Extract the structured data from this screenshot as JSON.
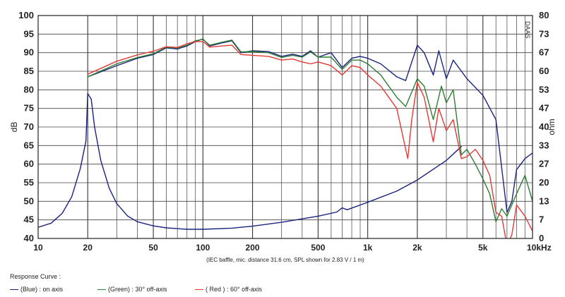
{
  "chart_data": {
    "type": "line",
    "x_scale": "log",
    "xlim": [
      10,
      10000
    ],
    "ylim_left": [
      40,
      100
    ],
    "ylim_right": [
      0,
      80
    ],
    "ylabel_left": "dB",
    "ylabel_right": "ohm",
    "xlabel": "",
    "x_tick_labels": [
      "10",
      "20",
      "50",
      "100",
      "200",
      "500",
      "1k",
      "2k",
      "5k",
      "10kHz"
    ],
    "x_tick_values": [
      10,
      20,
      50,
      100,
      200,
      500,
      1000,
      2000,
      5000,
      10000
    ],
    "y_left_ticks": [
      100,
      95,
      90,
      85,
      80,
      75,
      70,
      65,
      60,
      55,
      50,
      45,
      40
    ],
    "y_right_ticks": [
      80,
      73,
      67,
      60,
      53,
      47,
      40,
      33,
      27,
      20,
      13,
      7,
      0
    ],
    "grid": true,
    "caption": "(IEC baffle, mic. distance 31.6 cm, SPL shown for 2.83 V / 1 m)",
    "watermark": "DAAS",
    "legend_placement": "bottom",
    "series": [
      {
        "name": "(Blue)  : on axis",
        "color": "#1a237e",
        "axis": "left",
        "points": [
          [
            20,
            83.5
          ],
          [
            30,
            86.5
          ],
          [
            40,
            88.5
          ],
          [
            50,
            89.5
          ],
          [
            60,
            91.3
          ],
          [
            70,
            91.0
          ],
          [
            80,
            91.8
          ],
          [
            90,
            93.0
          ],
          [
            100,
            93.7
          ],
          [
            110,
            91.8
          ],
          [
            130,
            92.6
          ],
          [
            150,
            93.2
          ],
          [
            170,
            90.0
          ],
          [
            200,
            90.5
          ],
          [
            250,
            90.3
          ],
          [
            300,
            89.0
          ],
          [
            350,
            89.6
          ],
          [
            400,
            89.0
          ],
          [
            450,
            90.5
          ],
          [
            500,
            88.8
          ],
          [
            600,
            90.0
          ],
          [
            700,
            86.0
          ],
          [
            800,
            88.5
          ],
          [
            900,
            89.0
          ],
          [
            1000,
            88.5
          ],
          [
            1200,
            87.0
          ],
          [
            1500,
            83.5
          ],
          [
            1700,
            82.5
          ],
          [
            2000,
            92.0
          ],
          [
            2200,
            90.0
          ],
          [
            2500,
            84.0
          ],
          [
            2700,
            90.5
          ],
          [
            3000,
            83.0
          ],
          [
            3300,
            88.0
          ],
          [
            4000,
            83.0
          ],
          [
            5000,
            78.5
          ],
          [
            6000,
            72.0
          ],
          [
            7000,
            47.0
          ],
          [
            7500,
            50.0
          ],
          [
            8000,
            58.5
          ],
          [
            9000,
            61.5
          ],
          [
            10000,
            63.0
          ]
        ]
      },
      {
        "name": "(Green) : 30° off-axis",
        "color": "#2e7d32",
        "axis": "left",
        "points": [
          [
            20,
            83.5
          ],
          [
            30,
            87.0
          ],
          [
            40,
            88.7
          ],
          [
            50,
            89.7
          ],
          [
            60,
            91.5
          ],
          [
            70,
            91.2
          ],
          [
            80,
            92.0
          ],
          [
            90,
            93.2
          ],
          [
            100,
            93.6
          ],
          [
            110,
            92.0
          ],
          [
            130,
            92.8
          ],
          [
            150,
            93.4
          ],
          [
            170,
            90.2
          ],
          [
            200,
            90.3
          ],
          [
            250,
            90.0
          ],
          [
            300,
            88.7
          ],
          [
            350,
            89.3
          ],
          [
            400,
            88.8
          ],
          [
            450,
            90.2
          ],
          [
            500,
            88.8
          ],
          [
            600,
            88.8
          ],
          [
            700,
            85.5
          ],
          [
            800,
            88.0
          ],
          [
            900,
            88.0
          ],
          [
            1000,
            87.0
          ],
          [
            1200,
            84.0
          ],
          [
            1500,
            78.0
          ],
          [
            1700,
            75.5
          ],
          [
            2000,
            83.0
          ],
          [
            2200,
            81.0
          ],
          [
            2500,
            72.0
          ],
          [
            2800,
            81.0
          ],
          [
            3000,
            76.5
          ],
          [
            3300,
            80.0
          ],
          [
            3700,
            62.5
          ],
          [
            4000,
            64.0
          ],
          [
            4500,
            60.0
          ],
          [
            5000,
            56.0
          ],
          [
            5500,
            52.0
          ],
          [
            6000,
            44.5
          ],
          [
            6500,
            48.0
          ],
          [
            7000,
            46.0
          ],
          [
            8000,
            52.0
          ],
          [
            9000,
            57.0
          ],
          [
            10000,
            50.0
          ]
        ]
      },
      {
        "name": "( Red ) : 60° off-axis",
        "color": "#e53935",
        "axis": "left",
        "points": [
          [
            20,
            84.2
          ],
          [
            30,
            87.7
          ],
          [
            40,
            89.4
          ],
          [
            50,
            90.4
          ],
          [
            60,
            91.6
          ],
          [
            70,
            91.4
          ],
          [
            80,
            92.4
          ],
          [
            90,
            93.0
          ],
          [
            100,
            93.0
          ],
          [
            110,
            91.5
          ],
          [
            130,
            91.8
          ],
          [
            150,
            92.0
          ],
          [
            170,
            89.5
          ],
          [
            200,
            89.3
          ],
          [
            250,
            89.0
          ],
          [
            300,
            88.0
          ],
          [
            350,
            88.3
          ],
          [
            400,
            87.5
          ],
          [
            450,
            87.0
          ],
          [
            500,
            87.5
          ],
          [
            600,
            86.5
          ],
          [
            700,
            84.0
          ],
          [
            800,
            86.5
          ],
          [
            900,
            86.0
          ],
          [
            1000,
            84.0
          ],
          [
            1200,
            81.0
          ],
          [
            1500,
            75.0
          ],
          [
            1700,
            64.0
          ],
          [
            1750,
            61.5
          ],
          [
            1850,
            72.0
          ],
          [
            2000,
            82.0
          ],
          [
            2200,
            78.0
          ],
          [
            2500,
            66.0
          ],
          [
            2700,
            75.0
          ],
          [
            3000,
            69.0
          ],
          [
            3300,
            72.0
          ],
          [
            3700,
            61.5
          ],
          [
            4000,
            62.0
          ],
          [
            4500,
            64.0
          ],
          [
            5000,
            61.0
          ],
          [
            5500,
            57.0
          ],
          [
            6000,
            47.0
          ],
          [
            6500,
            46.0
          ],
          [
            7000,
            38.0
          ],
          [
            7500,
            41.0
          ],
          [
            8000,
            49.0
          ],
          [
            9000,
            46.0
          ],
          [
            10000,
            42.0
          ]
        ]
      },
      {
        "name": "impedance",
        "color": "#1a237e",
        "axis": "right",
        "points": [
          [
            10,
            4.0
          ],
          [
            12,
            5.5
          ],
          [
            14,
            9.0
          ],
          [
            16,
            15.0
          ],
          [
            18,
            25.0
          ],
          [
            19.5,
            35.0
          ],
          [
            20,
            52.0
          ],
          [
            21,
            50.0
          ],
          [
            22,
            40.0
          ],
          [
            24,
            28.0
          ],
          [
            27,
            18.0
          ],
          [
            30,
            12.5
          ],
          [
            35,
            8.0
          ],
          [
            40,
            6.0
          ],
          [
            50,
            4.5
          ],
          [
            60,
            3.8
          ],
          [
            80,
            3.3
          ],
          [
            100,
            3.3
          ],
          [
            150,
            3.7
          ],
          [
            200,
            4.4
          ],
          [
            300,
            5.8
          ],
          [
            500,
            8.0
          ],
          [
            650,
            9.5
          ],
          [
            700,
            11.0
          ],
          [
            750,
            10.3
          ],
          [
            1000,
            13.0
          ],
          [
            1500,
            17.0
          ],
          [
            2000,
            21.0
          ],
          [
            3000,
            28.0
          ],
          [
            3700,
            33.0
          ]
        ]
      }
    ]
  },
  "legend": {
    "title": "Response Curve :",
    "items": [
      {
        "label": "(Blue)  : on axis",
        "color": "#1a237e"
      },
      {
        "label": "(Green) : 30° off-axis",
        "color": "#2e7d32"
      },
      {
        "label": "( Red ) : 60° off-axis",
        "color": "#e53935"
      }
    ]
  }
}
